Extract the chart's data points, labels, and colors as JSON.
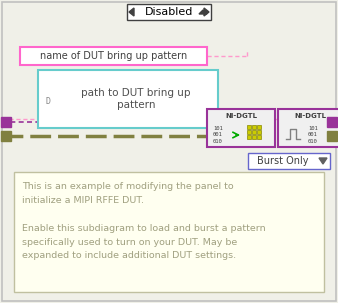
{
  "bg_color": "#f0f0e8",
  "outer_border_color": "#c0c0c0",
  "title_text": "Disabled",
  "title_box_color": "#ffffff",
  "title_border_color": "#404040",
  "name_label_text": "name of DUT bring up pattern",
  "name_label_bg": "#ffffff",
  "name_label_border": "#ff66cc",
  "path_label_text": "path to DUT bring up\npattern",
  "path_label_bg": "#ffffff",
  "path_label_border": "#66cccc",
  "wire_color_pink": "#ff99cc",
  "wire_color_olive": "#808040",
  "wire_color_purple": "#993399",
  "node_color_purple": "#993399",
  "node_color_olive": "#808040",
  "ni_dgtl_bg": "#f0f0f0",
  "ni_dgtl_border": "#993399",
  "ni_dgtl_label": "NI-DGTL",
  "burst_only_text": "Burst Only",
  "burst_only_bg": "#ffffff",
  "burst_only_border": "#6666cc",
  "comment_text": "This is an example of modifying the panel to\ninitialize a MIPI RFFE DUT.\n\nEnable this subdiagram to load and burst a pattern\nspecifically used to turn on your DUT. May be\nexpanded to include additional DUT settings.",
  "comment_bg": "#fffff0",
  "comment_border": "#c0c0a0",
  "comment_text_color": "#a0a080"
}
